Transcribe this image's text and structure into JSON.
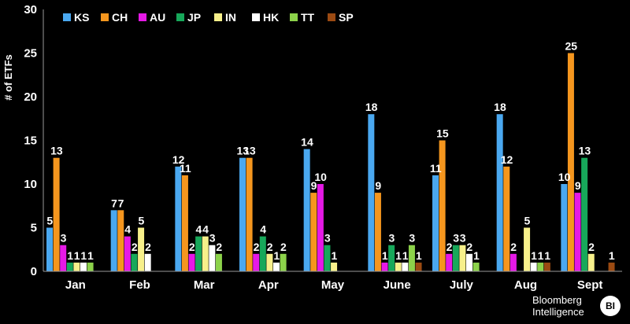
{
  "chart_data": {
    "type": "bar",
    "ylabel": "# of ETFs",
    "ylim": [
      0,
      30
    ],
    "yticks": [
      0,
      5,
      10,
      15,
      20,
      25,
      30
    ],
    "grid": false,
    "legend_position": "top-left",
    "categories": [
      "Jan",
      "Feb",
      "Mar",
      "Apr",
      "May",
      "June",
      "July",
      "Aug",
      "Sept"
    ],
    "series": [
      {
        "name": "KS",
        "color": "#4aa8f0",
        "values": [
          5,
          7,
          12,
          13,
          14,
          18,
          11,
          18,
          10
        ]
      },
      {
        "name": "CH",
        "color": "#f5961e",
        "values": [
          13,
          7,
          11,
          13,
          9,
          9,
          15,
          12,
          25
        ]
      },
      {
        "name": "AU",
        "color": "#e619e6",
        "values": [
          3,
          4,
          2,
          2,
          10,
          1,
          2,
          2,
          9
        ]
      },
      {
        "name": "JP",
        "color": "#17a85a",
        "values": [
          1,
          2,
          4,
          4,
          3,
          3,
          3,
          0,
          13
        ]
      },
      {
        "name": "IN",
        "color": "#f7f08a",
        "values": [
          1,
          5,
          4,
          2,
          1,
          1,
          3,
          5,
          2
        ]
      },
      {
        "name": "HK",
        "color": "#ffffff",
        "values": [
          1,
          2,
          3,
          1,
          0,
          1,
          2,
          1,
          0
        ]
      },
      {
        "name": "TT",
        "color": "#8cd24a",
        "values": [
          1,
          0,
          2,
          2,
          0,
          3,
          1,
          1,
          0
        ]
      },
      {
        "name": "SP",
        "color": "#9b4a12",
        "values": [
          0,
          0,
          0,
          0,
          0,
          1,
          0,
          1,
          1
        ]
      }
    ]
  },
  "branding": {
    "line1": "Bloomberg",
    "line2": "Intelligence",
    "badge": "BI"
  }
}
